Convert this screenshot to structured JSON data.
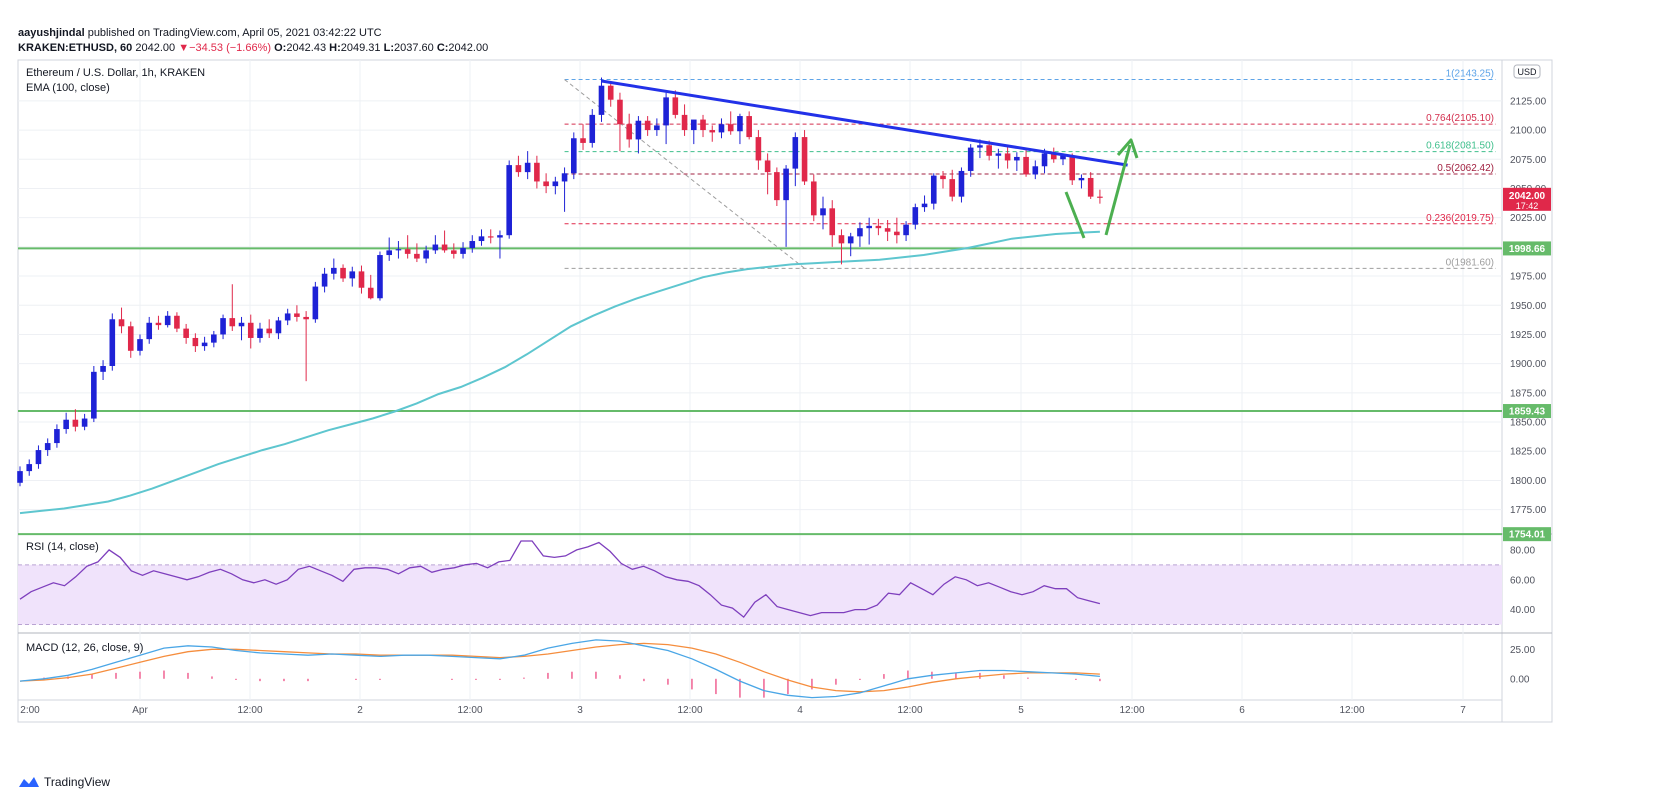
{
  "header": {
    "author": "aayushjindal",
    "published": " published on TradingView.com, April 05, 2021 03:42:22 UTC",
    "symbol": "KRAKEN:ETHUSD, 60",
    "last": "2042.00",
    "change": "▼−34.53 (−1.66%)",
    "o_label": "O:",
    "o": "2042.43",
    "h_label": "H:",
    "h": "2049.31",
    "l_label": "L:",
    "l": "2037.60",
    "c_label": "C:",
    "c": "2042.00"
  },
  "brand": {
    "name": "TradingView"
  },
  "colors": {
    "up": "#1e22d6",
    "down": "#e0284a",
    "ema": "#5ec6cf",
    "trendline": "#2231e8",
    "support": "#66bb6a",
    "arrow": "#4caf50",
    "rsi_band": "#f0e3fb",
    "rsi_line": "#7e3fbd",
    "macd_line": "#4aa6e6",
    "signal_line": "#f58d3d",
    "hist": "#f06292",
    "grid": "#eef0f4"
  },
  "chart_data": [
    {
      "type": "candlestick",
      "title": "Ethereum / U.S. Dollar, 1h, KRAKEN",
      "indicator_label": "EMA (100, close)",
      "currency": "USD",
      "x_labels": [
        "2:00",
        "Apr",
        "12:00",
        "2",
        "12:00",
        "3",
        "12:00",
        "4",
        "12:00",
        "5",
        "12:00",
        "6",
        "12:00",
        "7"
      ],
      "y_ticks": [
        1775,
        1800,
        1825,
        1850,
        1875,
        1900,
        1925,
        1950,
        1975,
        2000,
        2025,
        2050,
        2075,
        2100,
        2125
      ],
      "y_tick_labels": [
        "1775.00",
        "1800.00",
        "1825.00",
        "1850.00",
        "1875.00",
        "1900.00",
        "1925.00",
        "1950.00",
        "1975.00",
        "2000.00",
        "2025.00",
        "2050.00",
        "2075.00",
        "2100.00",
        "2125.00"
      ],
      "ylim": [
        1755,
        2160
      ],
      "last_price": {
        "value": 2042.0,
        "label": "2042.00",
        "timer": "17:42"
      },
      "candles": [
        [
          1798,
          1812,
          1795,
          1808
        ],
        [
          1808,
          1818,
          1804,
          1814
        ],
        [
          1814,
          1830,
          1810,
          1826
        ],
        [
          1826,
          1836,
          1821,
          1832
        ],
        [
          1832,
          1848,
          1828,
          1844
        ],
        [
          1844,
          1858,
          1840,
          1852
        ],
        [
          1852,
          1861,
          1842,
          1846
        ],
        [
          1846,
          1857,
          1843,
          1853
        ],
        [
          1853,
          1898,
          1850,
          1893
        ],
        [
          1893,
          1903,
          1886,
          1898
        ],
        [
          1898,
          1943,
          1894,
          1938
        ],
        [
          1938,
          1948,
          1926,
          1932
        ],
        [
          1932,
          1936,
          1905,
          1911
        ],
        [
          1911,
          1925,
          1907,
          1921
        ],
        [
          1921,
          1940,
          1917,
          1935
        ],
        [
          1935,
          1941,
          1929,
          1933
        ],
        [
          1933,
          1945,
          1931,
          1941
        ],
        [
          1941,
          1944,
          1927,
          1930
        ],
        [
          1930,
          1934,
          1917,
          1922
        ],
        [
          1922,
          1926,
          1910,
          1915
        ],
        [
          1915,
          1923,
          1911,
          1918
        ],
        [
          1918,
          1928,
          1914,
          1925
        ],
        [
          1925,
          1942,
          1921,
          1939
        ],
        [
          1939,
          1968,
          1928,
          1932
        ],
        [
          1932,
          1940,
          1920,
          1935
        ],
        [
          1935,
          1942,
          1913,
          1922
        ],
        [
          1922,
          1935,
          1918,
          1930
        ],
        [
          1930,
          1938,
          1922,
          1926
        ],
        [
          1926,
          1940,
          1921,
          1937
        ],
        [
          1937,
          1947,
          1933,
          1943
        ],
        [
          1943,
          1950,
          1936,
          1940
        ],
        [
          1940,
          1945,
          1885,
          1938
        ],
        [
          1938,
          1970,
          1935,
          1966
        ],
        [
          1966,
          1982,
          1961,
          1977
        ],
        [
          1977,
          1990,
          1972,
          1982
        ],
        [
          1982,
          1985,
          1970,
          1973
        ],
        [
          1973,
          1983,
          1966,
          1979
        ],
        [
          1979,
          1984,
          1960,
          1965
        ],
        [
          1965,
          1976,
          1955,
          1956
        ],
        [
          1956,
          1996,
          1954,
          1993
        ],
        [
          1993,
          2008,
          1988,
          1997
        ],
        [
          1997,
          2005,
          1990,
          1998
        ],
        [
          1998,
          2010,
          1990,
          1994
        ],
        [
          1994,
          2003,
          1987,
          1990
        ],
        [
          1990,
          2001,
          1986,
          1997
        ],
        [
          1997,
          2010,
          1994,
          2002
        ],
        [
          2002,
          2014,
          1995,
          1997
        ],
        [
          1997,
          2003,
          1990,
          1994
        ],
        [
          1994,
          2004,
          1990,
          1999
        ],
        [
          1999,
          2010,
          1995,
          2005
        ],
        [
          2005,
          2015,
          2001,
          2009
        ],
        [
          2009,
          2015,
          2003,
          2008
        ],
        [
          2008,
          2014,
          1990,
          2010
        ],
        [
          2010,
          2074,
          2007,
          2070
        ],
        [
          2070,
          2078,
          2060,
          2064
        ],
        [
          2064,
          2082,
          2058,
          2072
        ],
        [
          2072,
          2078,
          2050,
          2056
        ],
        [
          2056,
          2063,
          2046,
          2052
        ],
        [
          2052,
          2060,
          2045,
          2056
        ],
        [
          2056,
          2068,
          2030,
          2063
        ],
        [
          2063,
          2098,
          2058,
          2093
        ],
        [
          2093,
          2105,
          2083,
          2089
        ],
        [
          2089,
          2118,
          2085,
          2113
        ],
        [
          2113,
          2145,
          2107,
          2138
        ],
        [
          2138,
          2142,
          2120,
          2126
        ],
        [
          2126,
          2132,
          2082,
          2105
        ],
        [
          2105,
          2114,
          2085,
          2092
        ],
        [
          2092,
          2112,
          2080,
          2108
        ],
        [
          2108,
          2112,
          2095,
          2100
        ],
        [
          2100,
          2110,
          2095,
          2104
        ],
        [
          2104,
          2132,
          2088,
          2128
        ],
        [
          2128,
          2134,
          2110,
          2113
        ],
        [
          2113,
          2122,
          2095,
          2100
        ],
        [
          2100,
          2108,
          2088,
          2109
        ],
        [
          2109,
          2113,
          2094,
          2100
        ],
        [
          2100,
          2104,
          2090,
          2098
        ],
        [
          2098,
          2110,
          2093,
          2105
        ],
        [
          2105,
          2116,
          2096,
          2099
        ],
        [
          2099,
          2114,
          2088,
          2112
        ],
        [
          2112,
          2116,
          2092,
          2094
        ],
        [
          2094,
          2100,
          2066,
          2074
        ],
        [
          2074,
          2080,
          2045,
          2064
        ],
        [
          2064,
          2068,
          2035,
          2040
        ],
        [
          2040,
          2070,
          2000,
          2067
        ],
        [
          2067,
          2098,
          2052,
          2094
        ],
        [
          2094,
          2100,
          2053,
          2056
        ],
        [
          2056,
          2062,
          2022,
          2027
        ],
        [
          2027,
          2043,
          2015,
          2033
        ],
        [
          2033,
          2040,
          2000,
          2010
        ],
        [
          2010,
          2015,
          1985,
          2003
        ],
        [
          2003,
          2012,
          1992,
          2009
        ],
        [
          2009,
          2021,
          2000,
          2016
        ],
        [
          2016,
          2025,
          2002,
          2018
        ],
        [
          2018,
          2024,
          2010,
          2016
        ],
        [
          2016,
          2023,
          2005,
          2013
        ],
        [
          2013,
          2025,
          2003,
          2010
        ],
        [
          2010,
          2022,
          2005,
          2019
        ],
        [
          2019,
          2037,
          2015,
          2034
        ],
        [
          2034,
          2044,
          2030,
          2037
        ],
        [
          2037,
          2063,
          2032,
          2061
        ],
        [
          2061,
          2065,
          2050,
          2058
        ],
        [
          2058,
          2066,
          2039,
          2043
        ],
        [
          2043,
          2068,
          2038,
          2065
        ],
        [
          2065,
          2088,
          2060,
          2085
        ],
        [
          2085,
          2092,
          2076,
          2087
        ],
        [
          2087,
          2091,
          2074,
          2078
        ],
        [
          2078,
          2084,
          2067,
          2080
        ],
        [
          2080,
          2086,
          2067,
          2074
        ],
        [
          2074,
          2081,
          2065,
          2077
        ],
        [
          2077,
          2084,
          2060,
          2062
        ],
        [
          2062,
          2074,
          2058,
          2069
        ],
        [
          2069,
          2084,
          2063,
          2080
        ],
        [
          2080,
          2085,
          2072,
          2075
        ],
        [
          2075,
          2080,
          2070,
          2078
        ],
        [
          2078,
          2080,
          2053,
          2057
        ],
        [
          2057,
          2062,
          2050,
          2059
        ],
        [
          2059,
          2064,
          2041,
          2043
        ],
        [
          2043,
          2049,
          2037,
          2042
        ]
      ],
      "ema": [
        1772,
        1774,
        1776,
        1779,
        1782,
        1787,
        1793,
        1800,
        1807,
        1814,
        1820,
        1826,
        1831,
        1837,
        1843,
        1848,
        1853,
        1859,
        1866,
        1874,
        1880,
        1888,
        1897,
        1908,
        1920,
        1932,
        1941,
        1949,
        1956,
        1962,
        1968,
        1974,
        1978,
        1981,
        1983,
        1985,
        1986,
        1987,
        1988,
        1989,
        1991,
        1993,
        1996,
        1999,
        2003,
        2007,
        2009,
        2011,
        2012,
        2013
      ],
      "ema_label": "EMA (100, close)",
      "horizontal_levels": [
        {
          "value": 1998.66,
          "label": "1998.66",
          "style": "support"
        },
        {
          "value": 1859.43,
          "label": "1859.43",
          "style": "support"
        },
        {
          "value": 1754.01,
          "label": "1754.01",
          "style": "support"
        }
      ],
      "fib_levels": [
        {
          "ratio": "1",
          "value": 2143.25,
          "label": "1(2143.25)",
          "color": "#5ea4e8"
        },
        {
          "ratio": "0.764",
          "value": 2105.1,
          "label": "0.764(2105.10)",
          "color": "#d32f4e"
        },
        {
          "ratio": "0.618",
          "value": 2081.5,
          "label": "0.618(2081.50)",
          "color": "#3fbf8c"
        },
        {
          "ratio": "0.5",
          "value": 2062.42,
          "label": "0.5(2062.42)",
          "color": "#a12140"
        },
        {
          "ratio": "0.236",
          "value": 2019.75,
          "label": "0.236(2019.75)",
          "color": "#e0284a"
        },
        {
          "ratio": "0",
          "value": 1981.6,
          "label": "0(1981.60)",
          "color": "#9e9e9e"
        }
      ],
      "trendline": {
        "from": [
          63,
          2142
        ],
        "to": [
          120,
          2070
        ]
      }
    },
    {
      "type": "line",
      "title": "RSI (14, close)",
      "ylim": [
        25,
        90
      ],
      "y_ticks": [
        40,
        60,
        80
      ],
      "y_tick_labels": [
        "40.00",
        "60.00",
        "80.00"
      ],
      "band": [
        30,
        70
      ],
      "values": [
        47,
        52,
        55,
        58,
        56,
        62,
        69,
        72,
        80,
        75,
        66,
        63,
        66,
        64,
        62,
        60,
        62,
        65,
        67,
        64,
        60,
        58,
        60,
        57,
        60,
        67,
        69,
        66,
        63,
        59,
        67,
        68,
        68,
        67,
        64,
        68,
        69,
        65,
        67,
        68,
        70,
        71,
        68,
        72,
        73,
        86,
        86,
        76,
        75,
        76,
        80,
        82,
        85,
        79,
        71,
        67,
        69,
        66,
        62,
        60,
        59,
        56,
        50,
        43,
        41,
        35,
        45,
        50,
        42,
        40,
        38,
        36,
        38,
        38,
        38,
        40,
        40,
        43,
        51,
        50,
        58,
        54,
        50,
        57,
        62,
        60,
        56,
        58,
        55,
        52,
        50,
        52,
        56,
        54,
        54,
        48,
        46,
        44
      ]
    },
    {
      "type": "line",
      "title": "MACD (12, 26, close, 9)",
      "ylim": [
        -18,
        38
      ],
      "y_ticks": [
        0,
        25
      ],
      "y_tick_labels": [
        "0.00",
        "25.00"
      ],
      "macd": [
        -2,
        0,
        3,
        8,
        14,
        20,
        26,
        28,
        27,
        24,
        22,
        21,
        20,
        21,
        20,
        19,
        20,
        20,
        19,
        18,
        17,
        20,
        26,
        30,
        33,
        32,
        28,
        24,
        17,
        8,
        -2,
        -10,
        -14,
        -16,
        -15,
        -12,
        -6,
        0,
        3,
        5,
        7,
        7,
        6,
        5,
        4,
        2
      ],
      "signal": [
        -2,
        -1,
        1,
        4,
        9,
        14,
        19,
        23,
        25,
        25,
        24,
        23,
        22,
        21,
        21,
        20,
        20,
        20,
        20,
        19,
        18,
        19,
        21,
        24,
        27,
        29,
        30,
        29,
        26,
        21,
        14,
        6,
        -1,
        -7,
        -10,
        -11,
        -10,
        -7,
        -3,
        0,
        2,
        4,
        5,
        5,
        5,
        4
      ],
      "hist": [
        0,
        1,
        2,
        4,
        5,
        6,
        7,
        5,
        2,
        -1,
        -2,
        -2,
        -2,
        0,
        -1,
        -1,
        0,
        0,
        -1,
        -1,
        -1,
        1,
        5,
        6,
        6,
        3,
        -2,
        -5,
        -9,
        -13,
        -16,
        -16,
        -13,
        -9,
        -5,
        -1,
        4,
        7,
        6,
        5,
        5,
        3,
        1,
        0,
        -1,
        -2
      ]
    }
  ]
}
